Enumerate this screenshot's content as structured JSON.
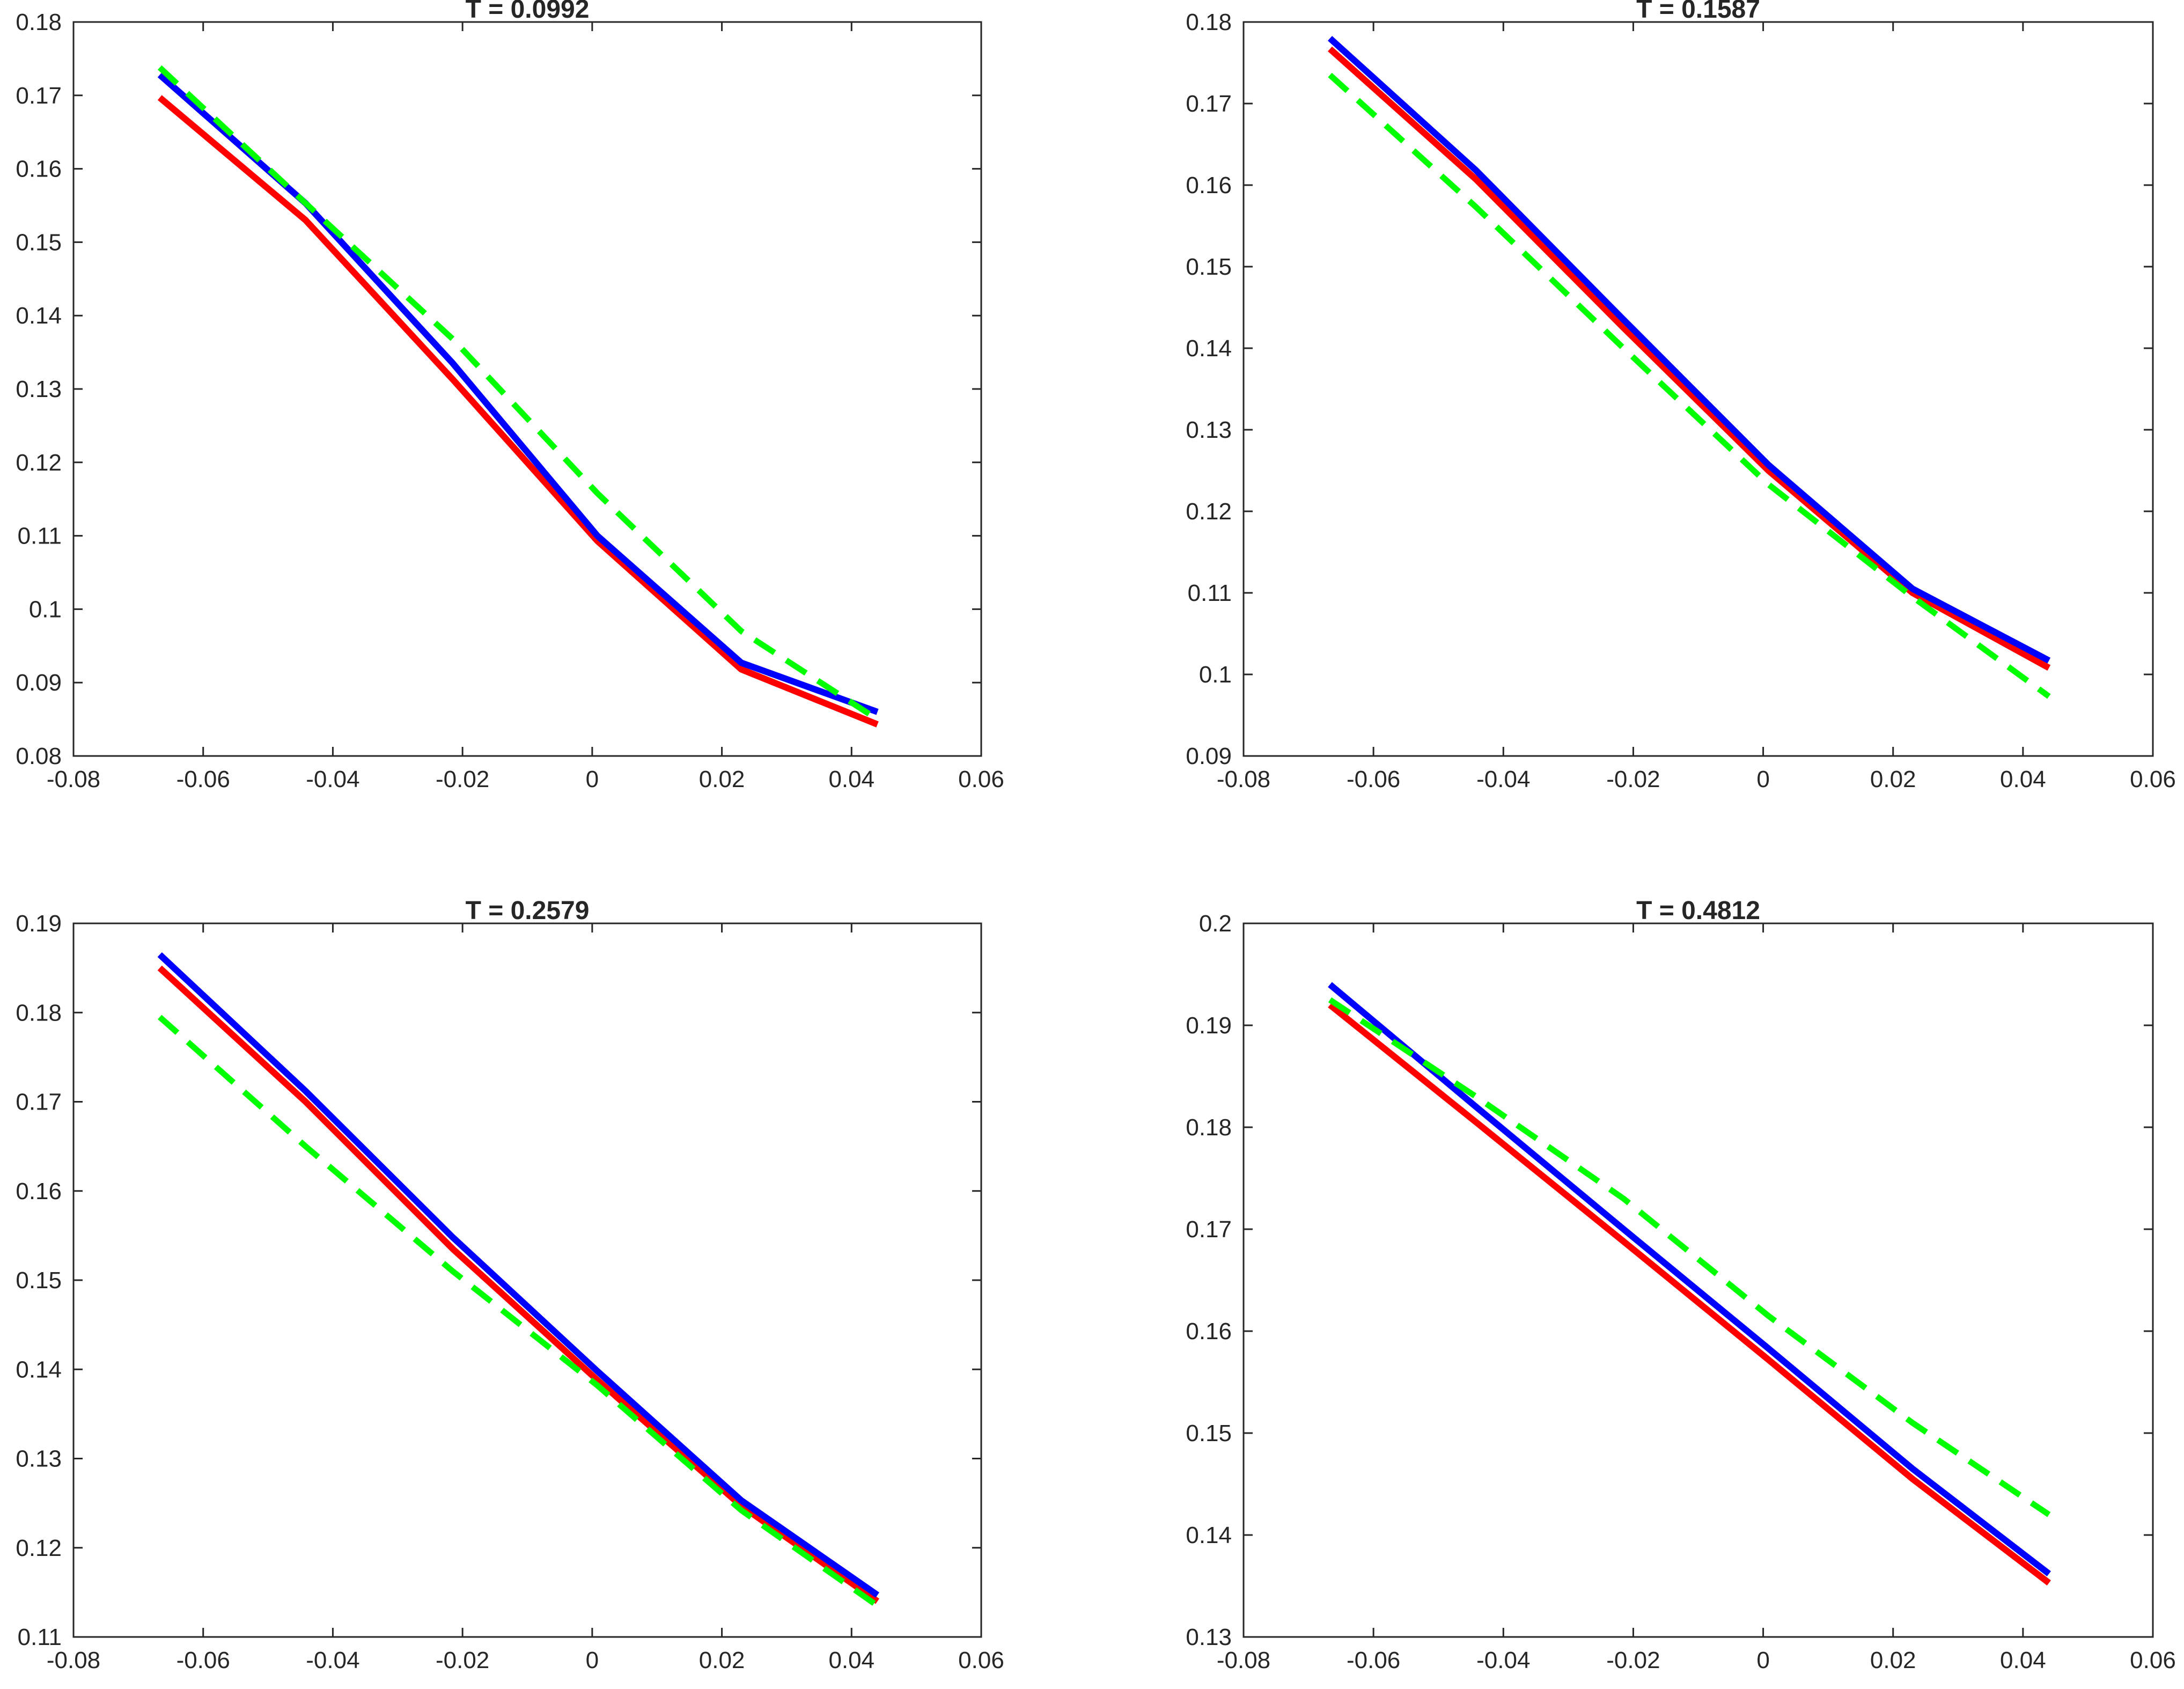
{
  "chart_data": [
    {
      "type": "line",
      "title": "T = 0.0992",
      "xlabel": "",
      "ylabel": "",
      "xlim": [
        -0.08,
        0.06
      ],
      "ylim": [
        0.08,
        0.18
      ],
      "grid": false,
      "xticks": [
        -0.08,
        -0.06,
        -0.04,
        -0.02,
        0,
        0.02,
        0.04,
        0.06
      ],
      "xtick_labels": [
        "-0.08",
        "-0.06",
        "-0.04",
        "-0.02",
        "0",
        "0.02",
        "0.04",
        "0.06"
      ],
      "yticks": [
        0.08,
        0.09,
        0.1,
        0.11,
        0.12,
        0.13,
        0.14,
        0.15,
        0.16,
        0.17,
        0.18
      ],
      "ytick_labels": [
        "0.08",
        "0.09",
        "0.1",
        "0.11",
        "0.12",
        "0.13",
        "0.14",
        "0.15",
        "0.16",
        "0.17",
        "0.18"
      ],
      "x": [
        -0.0667,
        -0.0442,
        -0.0215,
        0.0008,
        0.023,
        0.044
      ],
      "series": [
        {
          "name": "red",
          "color": "#ff0000",
          "style": "solid",
          "values": [
            0.1697,
            0.153,
            0.1313,
            0.1093,
            0.0918,
            0.0843
          ]
        },
        {
          "name": "blue",
          "color": "#0000ff",
          "style": "solid",
          "values": [
            0.1728,
            0.1553,
            0.1335,
            0.11,
            0.0927,
            0.086
          ]
        },
        {
          "name": "green",
          "color": "#00ff00",
          "style": "dashed",
          "values": [
            0.1738,
            0.1553,
            0.1368,
            0.1158,
            0.097,
            0.085
          ]
        }
      ]
    },
    {
      "type": "line",
      "title": "T = 0.1587",
      "xlabel": "",
      "ylabel": "",
      "xlim": [
        -0.08,
        0.06
      ],
      "ylim": [
        0.09,
        0.18
      ],
      "grid": false,
      "xticks": [
        -0.08,
        -0.06,
        -0.04,
        -0.02,
        0,
        0.02,
        0.04,
        0.06
      ],
      "xtick_labels": [
        "-0.08",
        "-0.06",
        "-0.04",
        "-0.02",
        "0",
        "0.02",
        "0.04",
        "0.06"
      ],
      "yticks": [
        0.09,
        0.1,
        0.11,
        0.12,
        0.13,
        0.14,
        0.15,
        0.16,
        0.17,
        0.18
      ],
      "ytick_labels": [
        "0.09",
        "0.1",
        "0.11",
        "0.12",
        "0.13",
        "0.14",
        "0.15",
        "0.16",
        "0.17",
        "0.18"
      ],
      "x": [
        -0.0667,
        -0.0442,
        -0.0215,
        0.0008,
        0.023,
        0.044
      ],
      "series": [
        {
          "name": "red",
          "color": "#ff0000",
          "style": "solid",
          "values": [
            0.1767,
            0.1607,
            0.1425,
            0.125,
            0.11,
            0.1008
          ]
        },
        {
          "name": "blue",
          "color": "#0000ff",
          "style": "solid",
          "values": [
            0.178,
            0.1618,
            0.1435,
            0.1257,
            0.1105,
            0.1017
          ]
        },
        {
          "name": "green",
          "color": "#00ff00",
          "style": "dashed",
          "values": [
            0.1735,
            0.1573,
            0.14,
            0.1233,
            0.1095,
            0.0973
          ]
        }
      ]
    },
    {
      "type": "line",
      "title": "T = 0.2579",
      "xlabel": "",
      "ylabel": "",
      "xlim": [
        -0.08,
        0.06
      ],
      "ylim": [
        0.11,
        0.19
      ],
      "grid": false,
      "xticks": [
        -0.08,
        -0.06,
        -0.04,
        -0.02,
        0,
        0.02,
        0.04,
        0.06
      ],
      "xtick_labels": [
        "-0.08",
        "-0.06",
        "-0.04",
        "-0.02",
        "0",
        "0.02",
        "0.04",
        "0.06"
      ],
      "yticks": [
        0.11,
        0.12,
        0.13,
        0.14,
        0.15,
        0.16,
        0.17,
        0.18,
        0.19
      ],
      "ytick_labels": [
        "0.11",
        "0.12",
        "0.13",
        "0.14",
        "0.15",
        "0.16",
        "0.17",
        "0.18",
        "0.19"
      ],
      "x": [
        -0.0667,
        -0.0442,
        -0.0215,
        0.0008,
        0.023,
        0.044
      ],
      "series": [
        {
          "name": "red",
          "color": "#ff0000",
          "style": "solid",
          "values": [
            0.185,
            0.17,
            0.1535,
            0.1388,
            0.1247,
            0.114
          ]
        },
        {
          "name": "blue",
          "color": "#0000ff",
          "style": "solid",
          "values": [
            0.1865,
            0.1712,
            0.1548,
            0.1398,
            0.1253,
            0.1147
          ]
        },
        {
          "name": "green",
          "color": "#00ff00",
          "style": "dashed",
          "values": [
            0.1795,
            0.165,
            0.151,
            0.1382,
            0.1242,
            0.1135
          ]
        }
      ]
    },
    {
      "type": "line",
      "title": "T = 0.4812",
      "xlabel": "",
      "ylabel": "",
      "xlim": [
        -0.08,
        0.06
      ],
      "ylim": [
        0.13,
        0.2
      ],
      "grid": false,
      "xticks": [
        -0.08,
        -0.06,
        -0.04,
        -0.02,
        0,
        0.02,
        0.04,
        0.06
      ],
      "xtick_labels": [
        "-0.08",
        "-0.06",
        "-0.04",
        "-0.02",
        "0",
        "0.02",
        "0.04",
        "0.06"
      ],
      "yticks": [
        0.13,
        0.14,
        0.15,
        0.16,
        0.17,
        0.18,
        0.19,
        0.2
      ],
      "ytick_labels": [
        "0.13",
        "0.14",
        "0.15",
        "0.16",
        "0.17",
        "0.18",
        "0.19",
        "0.2"
      ],
      "x": [
        -0.0667,
        -0.0442,
        -0.0215,
        0.0008,
        0.023,
        0.044
      ],
      "series": [
        {
          "name": "red",
          "color": "#ff0000",
          "style": "solid",
          "values": [
            0.192,
            0.1805,
            0.1688,
            0.1572,
            0.1455,
            0.1353
          ]
        },
        {
          "name": "blue",
          "color": "#0000ff",
          "style": "solid",
          "values": [
            0.194,
            0.182,
            0.17,
            0.1583,
            0.1465,
            0.1362
          ]
        },
        {
          "name": "green",
          "color": "#00ff00",
          "style": "dashed",
          "values": [
            0.1925,
            0.183,
            0.173,
            0.1615,
            0.151,
            0.142
          ]
        }
      ]
    }
  ]
}
